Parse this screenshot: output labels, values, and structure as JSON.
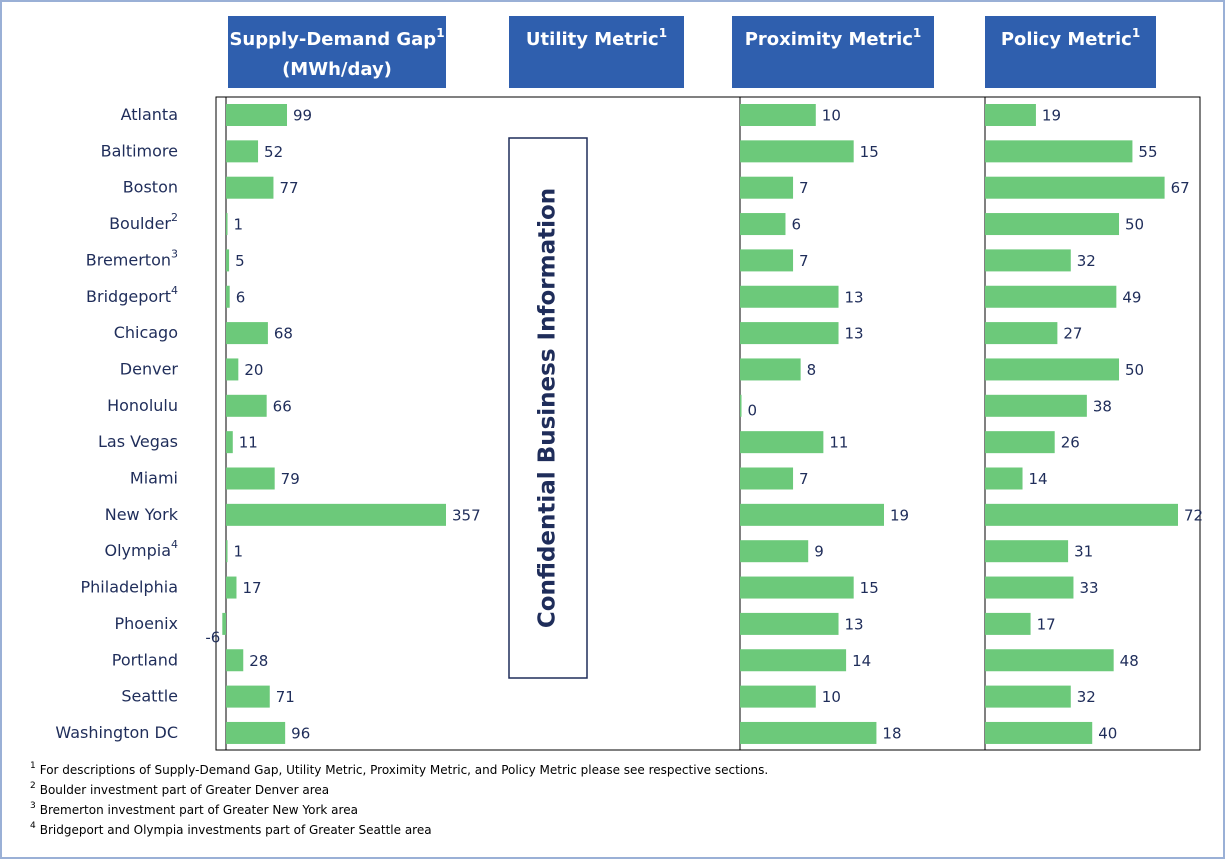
{
  "chart_data": {
    "type": "bar",
    "orientation": "horizontal",
    "categories": [
      "Atlanta",
      "Baltimore",
      "Boston",
      "Boulder",
      "Bremerton",
      "Bridgeport",
      "Chicago",
      "Denver",
      "Honolulu",
      "Las Vegas",
      "Miami",
      "New York",
      "Olympia",
      "Philadelphia",
      "Phoenix",
      "Portland",
      "Seattle",
      "Washington DC"
    ],
    "category_notes": [
      null,
      null,
      null,
      "2",
      "3",
      "4",
      null,
      null,
      null,
      null,
      null,
      null,
      "4",
      null,
      null,
      null,
      null,
      null
    ],
    "series": [
      {
        "name": "Supply-Demand Gap",
        "note": "1",
        "unit": "(MWh/day)",
        "color": "#6cc97a",
        "values": [
          99,
          52,
          77,
          1,
          5,
          6,
          68,
          20,
          66,
          11,
          79,
          357,
          1,
          17,
          -6,
          28,
          71,
          96
        ]
      },
      {
        "name": "Utility Metric",
        "note": "1",
        "overlay": "Confidential Business Information"
      },
      {
        "name": "Proximity Metric",
        "note": "1",
        "color": "#6cc97a",
        "values": [
          10,
          15,
          7,
          6,
          7,
          13,
          13,
          8,
          0,
          11,
          7,
          19,
          9,
          15,
          13,
          14,
          10,
          18
        ]
      },
      {
        "name": "Policy Metric",
        "note": "1",
        "color": "#6cc97a",
        "values": [
          19,
          55,
          67,
          50,
          32,
          49,
          27,
          50,
          38,
          26,
          14,
          72,
          31,
          33,
          17,
          48,
          32,
          40
        ]
      }
    ],
    "footnotes": [
      {
        "mark": "1",
        "text": "For descriptions of Supply-Demand Gap, Utility Metric, Proximity Metric, and Policy Metric please see respective sections."
      },
      {
        "mark": "2",
        "text": "Boulder investment part of Greater Denver area"
      },
      {
        "mark": "3",
        "text": "Bremerton investment part of Greater New York area"
      },
      {
        "mark": "4",
        "text": "Bridgeport and Olympia investments part of Greater Seattle area"
      }
    ]
  }
}
